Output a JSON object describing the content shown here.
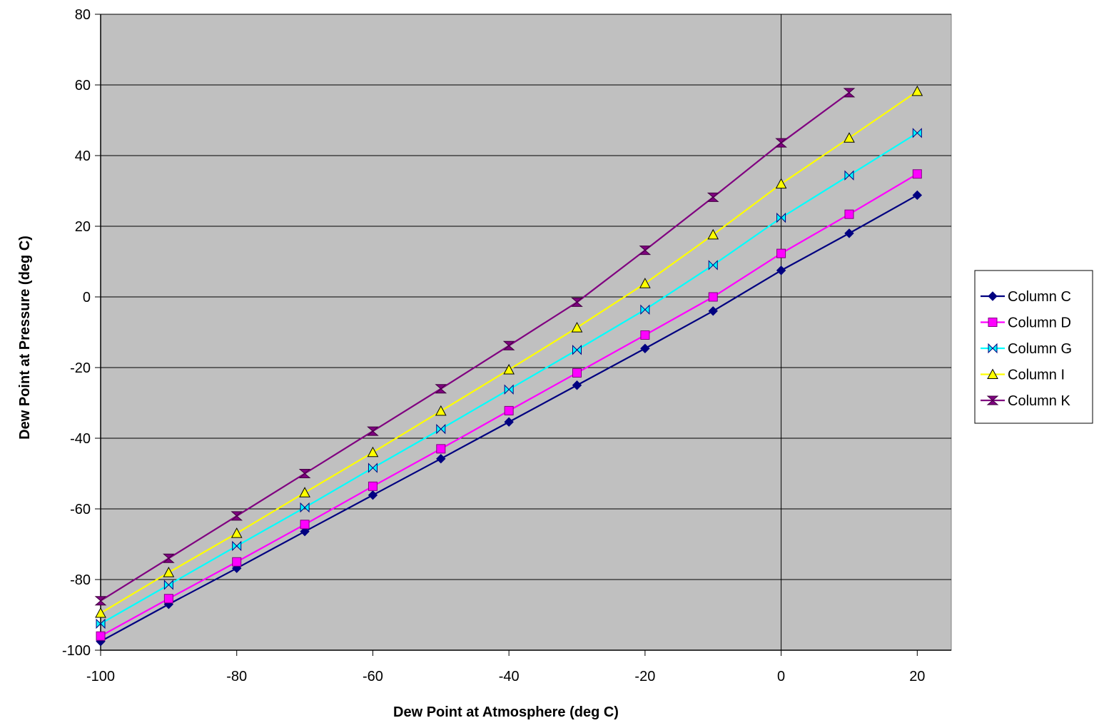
{
  "chart_data": {
    "type": "line",
    "title": "",
    "xlabel": "Dew Point at Atmosphere (deg C)",
    "ylabel": "Dew Point at Pressure (deg C)",
    "xlim": [
      -100,
      25
    ],
    "ylim": [
      -100,
      80
    ],
    "x_ticks": [
      -100,
      -80,
      -60,
      -40,
      -20,
      0,
      20
    ],
    "y_ticks": [
      -100,
      -80,
      -60,
      -40,
      -20,
      0,
      20,
      40,
      60,
      80
    ],
    "x_tick_labels": [
      "-100",
      "-80",
      "-60",
      "-40",
      "-20",
      "0",
      "20"
    ],
    "y_tick_labels": [
      "-100",
      "-80",
      "-60",
      "-40",
      "-20",
      "0",
      "20",
      "40",
      "60",
      "80"
    ],
    "grid": "horizontal major gridlines",
    "legend_position": "right",
    "plot_background": "#c0c0c0",
    "series": [
      {
        "name": "Column C",
        "color": "#000080",
        "marker": "diamond",
        "x": [
          -100,
          -90,
          -80,
          -70,
          -60,
          -50,
          -40,
          -30,
          -20,
          -10,
          0,
          10,
          20
        ],
        "values": [
          -97.5,
          -87,
          -76.8,
          -66.4,
          -56.1,
          -45.8,
          -35.4,
          -25,
          -14.6,
          -4,
          7.5,
          18,
          28.8
        ]
      },
      {
        "name": "Column D",
        "color": "#ff00ff",
        "marker": "square",
        "x": [
          -100,
          -90,
          -80,
          -70,
          -60,
          -50,
          -40,
          -30,
          -20,
          -10,
          0,
          10,
          20
        ],
        "values": [
          -96,
          -85.4,
          -75,
          -64.4,
          -53.6,
          -43,
          -32.2,
          -21.5,
          -10.8,
          0,
          12.3,
          23.4,
          34.8
        ]
      },
      {
        "name": "Column G",
        "color": "#00ffff",
        "marker": "bowtie",
        "x": [
          -100,
          -90,
          -80,
          -70,
          -60,
          -50,
          -40,
          -30,
          -20,
          -10,
          0,
          10,
          20
        ],
        "values": [
          -92.5,
          -81.5,
          -70.5,
          -59.6,
          -48.4,
          -37.4,
          -26.2,
          -15,
          -3.6,
          9,
          22.4,
          34.4,
          46.4
        ]
      },
      {
        "name": "Column I",
        "color": "#ffff00",
        "marker": "triangle",
        "x": [
          -100,
          -90,
          -80,
          -70,
          -60,
          -50,
          -40,
          -30,
          -20,
          -10,
          0,
          10,
          20
        ],
        "values": [
          -89.5,
          -78,
          -66.9,
          -55.4,
          -44,
          -32.3,
          -20.6,
          -8.7,
          3.8,
          17.6,
          32,
          45,
          58.2
        ]
      },
      {
        "name": "Column K",
        "color": "#800080",
        "marker": "hourglass",
        "x": [
          -100,
          -90,
          -80,
          -70,
          -60,
          -50,
          -40,
          -30,
          -20,
          -10,
          0,
          10
        ],
        "values": [
          -86,
          -74,
          -62,
          -50,
          -38,
          -26,
          -13.8,
          -1.5,
          13.2,
          28.2,
          43.6,
          57.8
        ]
      }
    ]
  }
}
